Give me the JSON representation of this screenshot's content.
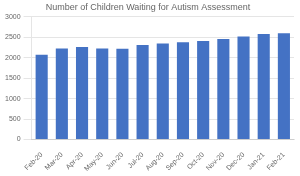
{
  "chart_data": {
    "type": "bar",
    "title": "Number of Children Waiting for Autism Assessment",
    "categories": [
      "Feb-20",
      "Mar-20",
      "Apr-20",
      "May-20",
      "Jun-20",
      "Jul-20",
      "Aug-20",
      "Sep-20",
      "Oct-20",
      "Nov-20",
      "Dec-20",
      "Jan-21",
      "Feb-21"
    ],
    "values": [
      2075,
      2225,
      2265,
      2225,
      2220,
      2310,
      2350,
      2375,
      2410,
      2460,
      2520,
      2580,
      2600
    ],
    "color": "#4472C4",
    "ylim": [
      0,
      3000
    ],
    "yticks": [
      0,
      500,
      1000,
      1500,
      2000,
      2500,
      3000
    ],
    "grid": true
  }
}
